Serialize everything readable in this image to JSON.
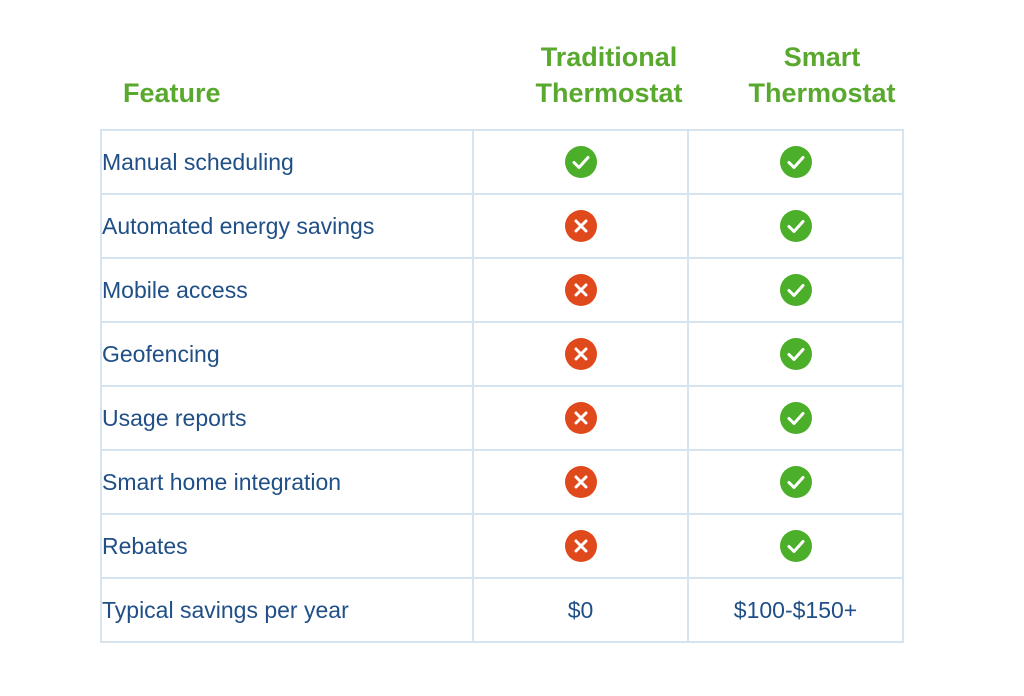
{
  "header": {
    "feature_label": "Feature",
    "traditional_line1": "Traditional",
    "traditional_line2": "Thermostat",
    "smart_line1": "Smart",
    "smart_line2": "Thermostat"
  },
  "colors": {
    "heading_green": "#5aa92f",
    "text_blue": "#1f4f86",
    "check_green": "#4caf2a",
    "cross_red": "#e0491b",
    "border": "#d5e4ef"
  },
  "rows": [
    {
      "feature": "Manual scheduling",
      "traditional": "check-icon",
      "smart": "check-icon"
    },
    {
      "feature": "Automated energy savings",
      "traditional": "x-icon",
      "smart": "check-icon"
    },
    {
      "feature": "Mobile access",
      "traditional": "x-icon",
      "smart": "check-icon"
    },
    {
      "feature": "Geofencing",
      "traditional": "x-icon",
      "smart": "check-icon"
    },
    {
      "feature": "Usage reports",
      "traditional": "x-icon",
      "smart": "check-icon"
    },
    {
      "feature": "Smart home integration",
      "traditional": "x-icon",
      "smart": "check-icon"
    },
    {
      "feature": "Rebates",
      "traditional": "x-icon",
      "smart": "check-icon"
    }
  ],
  "savings_row": {
    "feature": "Typical savings per year",
    "traditional": "$0",
    "smart": "$100-$150+"
  }
}
